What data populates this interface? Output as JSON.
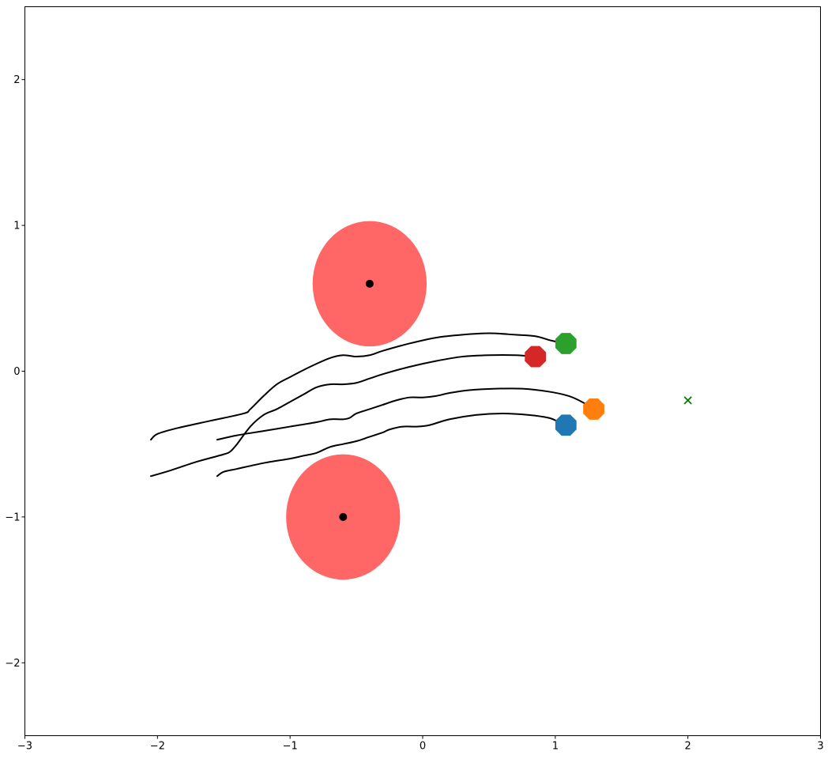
{
  "chart_data": {
    "type": "scatter",
    "title": "",
    "xlabel": "",
    "ylabel": "",
    "xlim": [
      -3,
      3
    ],
    "ylim": [
      -2.5,
      2.5
    ],
    "x_ticks": [
      -3,
      -2,
      -1,
      0,
      1,
      2,
      3
    ],
    "y_ticks": [
      -2,
      -1,
      0,
      1,
      2
    ],
    "x_tick_labels": [
      "−3",
      "−2",
      "−1",
      "0",
      "1",
      "2",
      "3"
    ],
    "y_tick_labels": [
      "−2",
      "−1",
      "0",
      "1",
      "2"
    ],
    "grid": false,
    "legend": "none",
    "obstacles": [
      {
        "center": [
          -0.4,
          0.6
        ],
        "radius": 0.43,
        "color": "#ff6666",
        "center_color": "#000000"
      },
      {
        "center": [
          -0.6,
          -1.0
        ],
        "radius": 0.43,
        "color": "#ff6666",
        "center_color": "#000000"
      }
    ],
    "goal": {
      "x": 2.0,
      "y": -0.2,
      "marker": "x",
      "color": "#008000"
    },
    "trajectories": [
      {
        "color": "#2ca02c",
        "end": [
          1.08,
          0.19
        ],
        "points": [
          [
            -2.05,
            -0.47
          ],
          [
            -2.0,
            -0.43
          ],
          [
            -1.85,
            -0.39
          ],
          [
            -1.6,
            -0.34
          ],
          [
            -1.35,
            -0.29
          ],
          [
            -1.3,
            -0.26
          ],
          [
            -1.2,
            -0.17
          ],
          [
            -1.1,
            -0.09
          ],
          [
            -1.0,
            -0.04
          ],
          [
            -0.85,
            0.03
          ],
          [
            -0.7,
            0.09
          ],
          [
            -0.6,
            0.11
          ],
          [
            -0.5,
            0.1
          ],
          [
            -0.4,
            0.11
          ],
          [
            -0.3,
            0.14
          ],
          [
            -0.1,
            0.19
          ],
          [
            0.1,
            0.23
          ],
          [
            0.3,
            0.25
          ],
          [
            0.5,
            0.26
          ],
          [
            0.7,
            0.25
          ],
          [
            0.85,
            0.24
          ],
          [
            0.97,
            0.21
          ],
          [
            1.08,
            0.19
          ]
        ]
      },
      {
        "color": "#d62728",
        "end": [
          0.85,
          0.1
        ],
        "points": [
          [
            -2.05,
            -0.72
          ],
          [
            -1.9,
            -0.68
          ],
          [
            -1.7,
            -0.62
          ],
          [
            -1.5,
            -0.57
          ],
          [
            -1.45,
            -0.55
          ],
          [
            -1.4,
            -0.5
          ],
          [
            -1.3,
            -0.38
          ],
          [
            -1.2,
            -0.3
          ],
          [
            -1.1,
            -0.26
          ],
          [
            -1.0,
            -0.21
          ],
          [
            -0.9,
            -0.16
          ],
          [
            -0.8,
            -0.11
          ],
          [
            -0.7,
            -0.09
          ],
          [
            -0.6,
            -0.09
          ],
          [
            -0.5,
            -0.08
          ],
          [
            -0.4,
            -0.05
          ],
          [
            -0.3,
            -0.02
          ],
          [
            -0.1,
            0.03
          ],
          [
            0.1,
            0.07
          ],
          [
            0.3,
            0.1
          ],
          [
            0.5,
            0.11
          ],
          [
            0.7,
            0.11
          ],
          [
            0.85,
            0.1
          ]
        ]
      },
      {
        "color": "#ff7f0e",
        "end": [
          1.29,
          -0.26
        ],
        "points": [
          [
            -1.55,
            -0.47
          ],
          [
            -1.4,
            -0.44
          ],
          [
            -1.2,
            -0.41
          ],
          [
            -1.0,
            -0.38
          ],
          [
            -0.8,
            -0.35
          ],
          [
            -0.7,
            -0.33
          ],
          [
            -0.6,
            -0.33
          ],
          [
            -0.55,
            -0.32
          ],
          [
            -0.5,
            -0.29
          ],
          [
            -0.4,
            -0.26
          ],
          [
            -0.3,
            -0.23
          ],
          [
            -0.2,
            -0.2
          ],
          [
            -0.1,
            -0.18
          ],
          [
            0.0,
            -0.18
          ],
          [
            0.1,
            -0.17
          ],
          [
            0.2,
            -0.15
          ],
          [
            0.35,
            -0.13
          ],
          [
            0.55,
            -0.12
          ],
          [
            0.75,
            -0.12
          ],
          [
            0.95,
            -0.14
          ],
          [
            1.1,
            -0.17
          ],
          [
            1.2,
            -0.21
          ],
          [
            1.29,
            -0.26
          ]
        ]
      },
      {
        "color": "#1f77b4",
        "end": [
          1.08,
          -0.37
        ],
        "points": [
          [
            -1.55,
            -0.72
          ],
          [
            -1.5,
            -0.69
          ],
          [
            -1.4,
            -0.67
          ],
          [
            -1.2,
            -0.63
          ],
          [
            -1.0,
            -0.6
          ],
          [
            -0.9,
            -0.58
          ],
          [
            -0.8,
            -0.56
          ],
          [
            -0.7,
            -0.52
          ],
          [
            -0.6,
            -0.5
          ],
          [
            -0.5,
            -0.48
          ],
          [
            -0.4,
            -0.45
          ],
          [
            -0.3,
            -0.42
          ],
          [
            -0.25,
            -0.4
          ],
          [
            -0.15,
            -0.38
          ],
          [
            -0.05,
            -0.38
          ],
          [
            0.05,
            -0.37
          ],
          [
            0.2,
            -0.33
          ],
          [
            0.4,
            -0.3
          ],
          [
            0.6,
            -0.29
          ],
          [
            0.8,
            -0.3
          ],
          [
            0.95,
            -0.32
          ],
          [
            1.03,
            -0.35
          ],
          [
            1.08,
            -0.37
          ]
        ]
      }
    ]
  }
}
